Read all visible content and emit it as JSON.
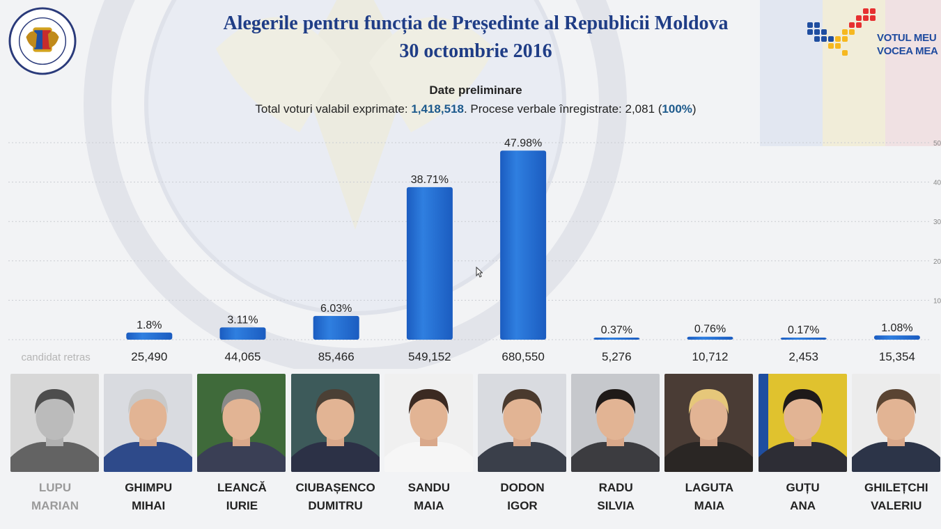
{
  "header": {
    "title_line1": "Alegerile pentru funcția de Președinte al Republicii Moldova",
    "title_line2": "30 octombrie 2016",
    "subtitle": "Date preliminare",
    "totals_prefix": "Total voturi valabil exprimate: ",
    "total_votes": "1,418,518",
    "totals_middle": ". Procese verbale înregistrate: 2,081 (",
    "percent_processed": "100%",
    "totals_suffix": ")"
  },
  "branding": {
    "seal_icon": "cec-seal-icon",
    "brand_line1": "VOTUL MEU",
    "brand_line2": "VOCEA MEA"
  },
  "colors": {
    "bar": "#2f7fe0",
    "bar_dark": "#1b5cc0",
    "title": "#1f3d86",
    "accent": "#1d5a8c"
  },
  "chart_data": {
    "type": "bar",
    "title": "",
    "ylim": [
      0,
      50
    ],
    "y_ticks": [
      "10",
      "20",
      "30",
      "40",
      "50"
    ],
    "grid": true,
    "categories": [
      "LUPU MARIAN",
      "GHIMPU MIHAI",
      "LEANCĂ IURIE",
      "CIUBAȘENCO DUMITRU",
      "SANDU MAIA",
      "DODON IGOR",
      "RADU SILVIA",
      "LAGUTA MAIA",
      "GUȚU ANA",
      "GHILEȚCHI VALERIU"
    ],
    "values": [
      null,
      1.8,
      3.11,
      6.03,
      38.71,
      47.98,
      0.37,
      0.76,
      0.17,
      1.08
    ],
    "value_labels": [
      "",
      "1.8%",
      "3.11%",
      "6.03%",
      "38.71%",
      "47.98%",
      "0.37%",
      "0.76%",
      "0.17%",
      "1.08%"
    ],
    "vote_counts": [
      "candidat retras",
      "25,490",
      "44,065",
      "85,466",
      "549,152",
      "680,550",
      "5,276",
      "10,712",
      "2,453",
      "15,354"
    ]
  },
  "candidates": [
    {
      "surname": "LUPU",
      "given": "MARIAN",
      "withdrawn": true
    },
    {
      "surname": "GHIMPU",
      "given": "MIHAI",
      "withdrawn": false
    },
    {
      "surname": "LEANCĂ",
      "given": "IURIE",
      "withdrawn": false
    },
    {
      "surname": "CIUBAȘENCO",
      "given": "DUMITRU",
      "withdrawn": false
    },
    {
      "surname": "SANDU",
      "given": "MAIA",
      "withdrawn": false
    },
    {
      "surname": "DODON",
      "given": "IGOR",
      "withdrawn": false
    },
    {
      "surname": "RADU",
      "given": "SILVIA",
      "withdrawn": false
    },
    {
      "surname": "LAGUTA",
      "given": "MAIA",
      "withdrawn": false
    },
    {
      "surname": "GUȚU",
      "given": "ANA",
      "withdrawn": false
    },
    {
      "surname": "GHILEȚCHI",
      "given": "VALERIU",
      "withdrawn": false
    }
  ]
}
